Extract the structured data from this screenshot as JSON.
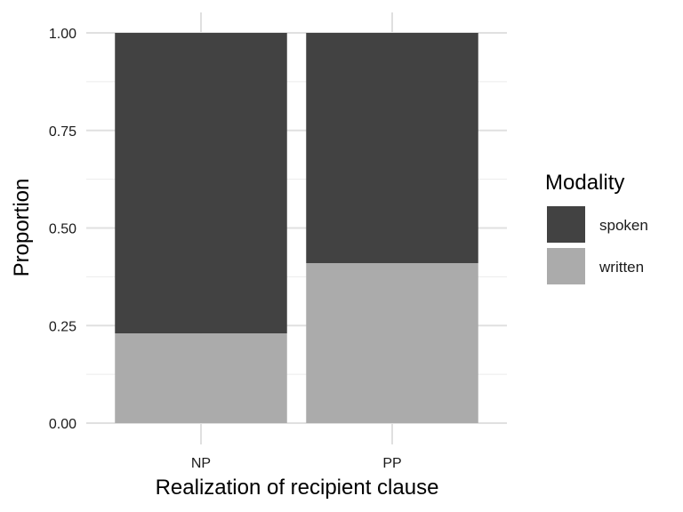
{
  "chart_data": {
    "type": "bar",
    "stacked": true,
    "normalized": true,
    "title": "",
    "xlabel": "Realization of recipient clause",
    "ylabel": "Proportion",
    "categories": [
      "NP",
      "PP"
    ],
    "series": [
      {
        "name": "written",
        "values": [
          0.23,
          0.41
        ],
        "color": "#ababab"
      },
      {
        "name": "spoken",
        "values": [
          0.77,
          0.59
        ],
        "color": "#424242"
      }
    ],
    "ylim": [
      0,
      1
    ],
    "yticks": [
      0,
      0.25,
      0.5,
      0.75,
      1
    ],
    "ytick_labels": [
      "0.00",
      "0.25",
      "0.50",
      "0.75",
      "1.00"
    ],
    "grid": true,
    "legend": {
      "title": "Modality",
      "position": "right",
      "entries": [
        {
          "label": "spoken",
          "color": "#424242"
        },
        {
          "label": "written",
          "color": "#ababab"
        }
      ]
    }
  }
}
